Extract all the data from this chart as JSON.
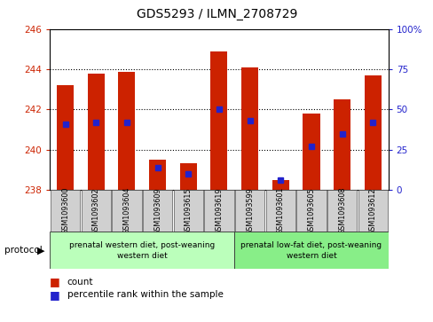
{
  "title": "GDS5293 / ILMN_2708729",
  "samples": [
    "GSM1093600",
    "GSM1093602",
    "GSM1093604",
    "GSM1093609",
    "GSM1093615",
    "GSM1093619",
    "GSM1093599",
    "GSM1093601",
    "GSM1093605",
    "GSM1093608",
    "GSM1093612"
  ],
  "red_values": [
    243.2,
    243.8,
    243.85,
    239.5,
    239.35,
    244.9,
    244.1,
    238.5,
    241.8,
    242.5,
    243.7
  ],
  "blue_values": [
    41,
    42,
    42,
    14,
    10,
    50,
    43,
    6,
    27,
    35,
    42
  ],
  "ylim_left": [
    238,
    246
  ],
  "ylim_right": [
    0,
    100
  ],
  "yticks_left": [
    238,
    240,
    242,
    244,
    246
  ],
  "yticks_right": [
    0,
    25,
    50,
    75,
    100
  ],
  "bar_color": "#cc2200",
  "marker_color": "#2222cc",
  "baseline": 238,
  "group1_count": 6,
  "group2_count": 5,
  "group1_label": "prenatal western diet, post-weaning\nwestern diet",
  "group2_label": "prenatal low-fat diet, post-weaning\nwestern diet",
  "group1_color": "#bbffbb",
  "group2_color": "#88ee88",
  "protocol_label": "protocol",
  "legend_count": "count",
  "legend_percentile": "percentile rank within the sample",
  "title_fontsize": 10,
  "tick_fontsize": 7.5,
  "sample_fontsize": 5.8,
  "bar_width": 0.55,
  "grid_color": "#000000",
  "grid_lines": [
    240,
    242,
    244
  ],
  "spine_color": "#000000"
}
